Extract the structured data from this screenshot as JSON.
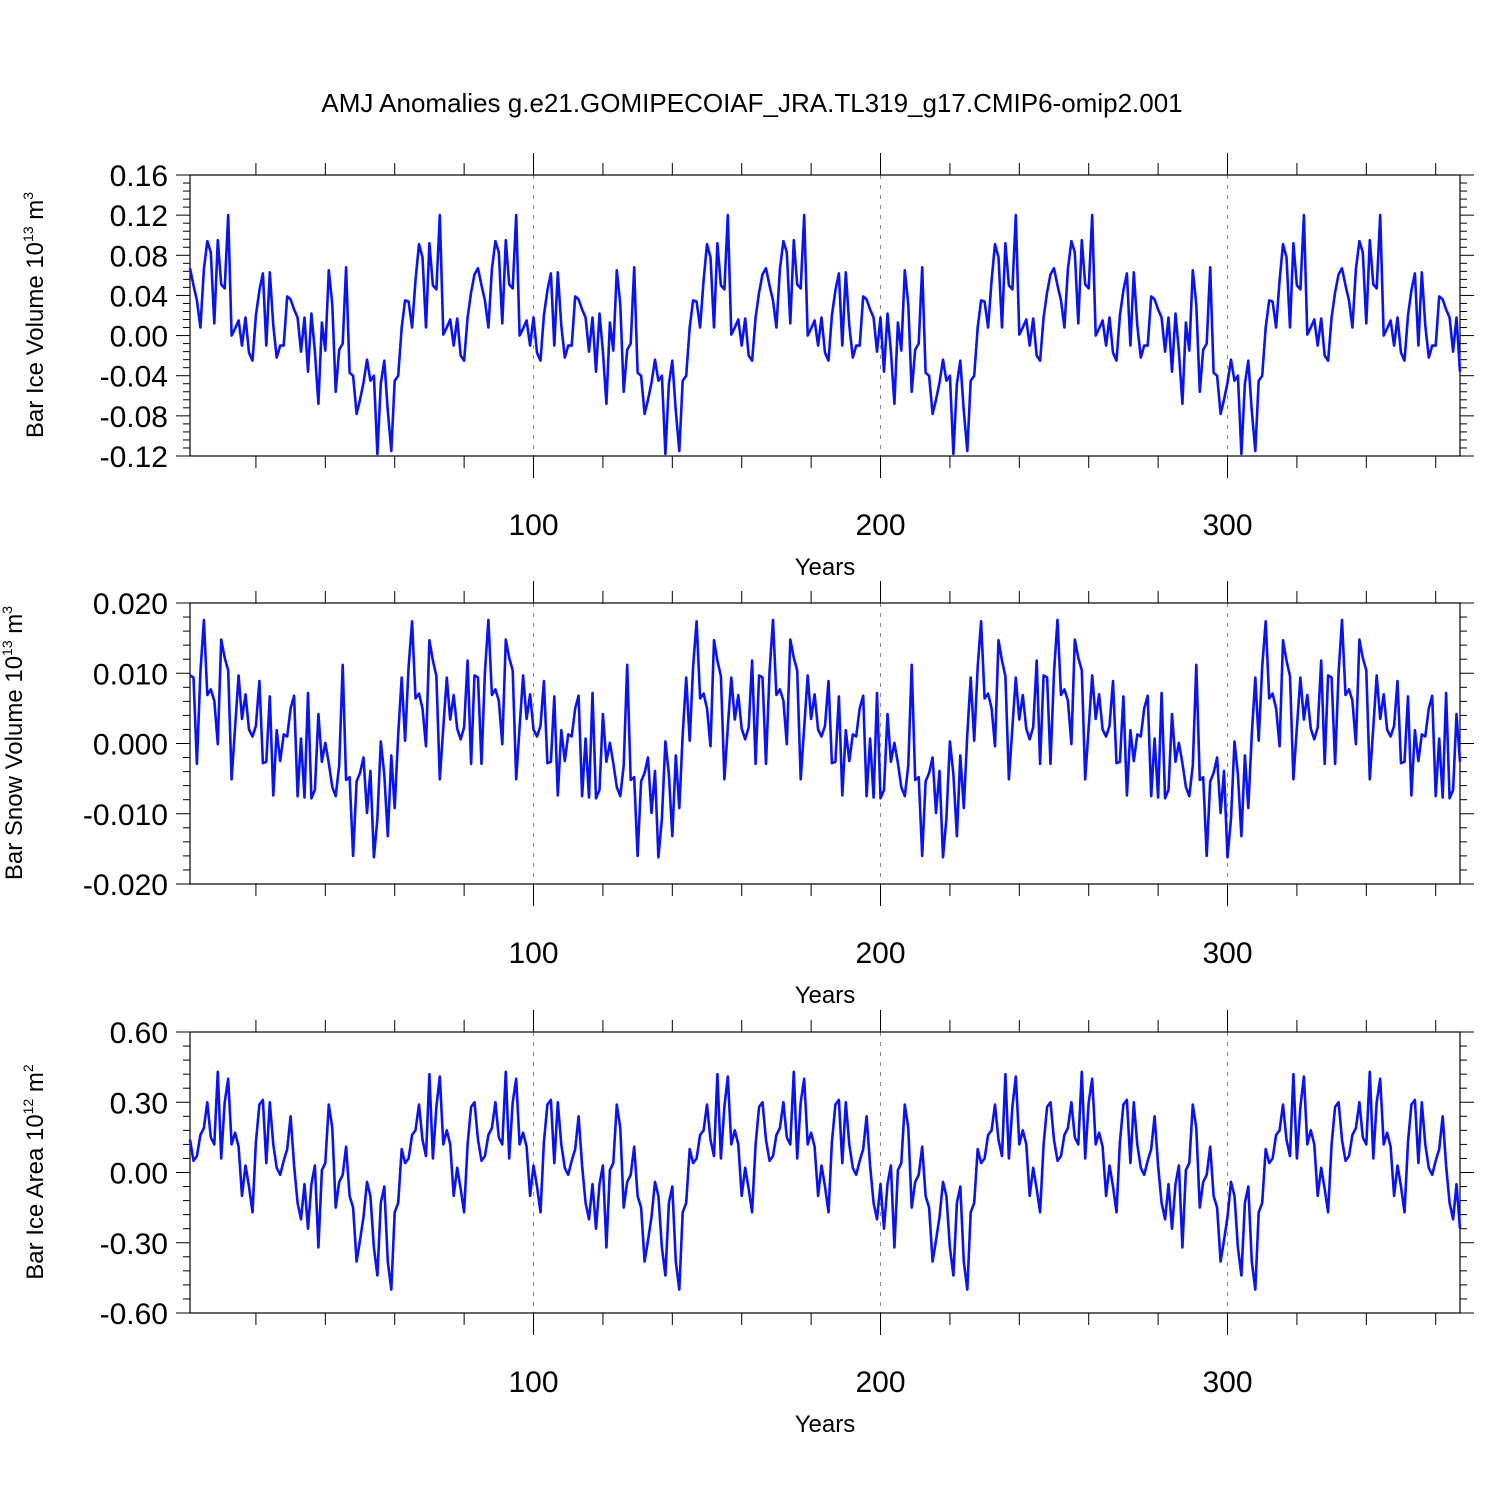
{
  "title": "AMJ Anomalies g.e21.GOMIPECOIAF_JRA.TL319_g17.CMIP6-omip2.001",
  "chart_data": [
    {
      "type": "line",
      "ylabel": {
        "prefix": "Bar Ice Volume 10",
        "exponent": "13",
        "unit": " m",
        "unit_exp": "3"
      },
      "xlabel": "Years",
      "xlim": [
        1,
        367
      ],
      "ylim": [
        -0.12,
        0.16
      ],
      "yticks": [
        -0.12,
        -0.08,
        -0.04,
        0.0,
        0.04,
        0.08,
        0.12,
        0.16
      ],
      "ytick_labels": [
        "-0.12",
        "-0.08",
        "-0.04",
        "0.00",
        "0.04",
        "0.08",
        "0.12",
        "0.16"
      ],
      "xticks": [
        100,
        200,
        300
      ],
      "xtick_labels": [
        "100",
        "200",
        "300"
      ],
      "line_color": "#0a14f0",
      "cycle": [
        0.067,
        0.05,
        0.035,
        0.008,
        0.066,
        0.094,
        0.083,
        0.012,
        0.095,
        0.051,
        0.047,
        0.12,
        0.0,
        0.007,
        0.015,
        -0.01,
        0.018,
        -0.017,
        -0.025,
        0.02,
        0.045,
        0.062,
        -0.01,
        0.063,
        0.01,
        -0.022,
        -0.01,
        -0.01,
        0.039,
        0.036,
        0.026,
        0.018,
        -0.016,
        0.018,
        -0.036,
        0.022,
        -0.016,
        -0.068,
        0.013,
        -0.015,
        0.065,
        0.031,
        -0.056,
        -0.014,
        -0.008,
        0.068,
        -0.037,
        -0.04,
        -0.078,
        -0.064,
        -0.047,
        -0.024,
        -0.045,
        -0.04,
        -0.118,
        -0.048,
        -0.025,
        -0.075,
        -0.115,
        -0.045,
        -0.04,
        0.008,
        0.035,
        0.034,
        0.008,
        0.055,
        0.091,
        0.078,
        0.008,
        0.092,
        0.05,
        0.046,
        0.12,
        0.001,
        0.008,
        0.016,
        -0.01,
        0.017,
        -0.02,
        -0.025,
        0.018,
        0.043,
        0.061
      ],
      "values": []
    },
    {
      "type": "line",
      "ylabel": {
        "prefix": "Bar Snow Volume 10",
        "exponent": "13",
        "unit": " m",
        "unit_exp": "3"
      },
      "xlabel": "Years",
      "xlim": [
        1,
        367
      ],
      "ylim": [
        -0.02,
        0.02
      ],
      "yticks": [
        -0.02,
        -0.01,
        0.0,
        0.01,
        0.02
      ],
      "ytick_labels": [
        "-0.020",
        "-0.010",
        "0.000",
        "0.010",
        "0.020"
      ],
      "xticks": [
        100,
        200,
        300
      ],
      "xtick_labels": [
        "100",
        "200",
        "300"
      ],
      "line_color": "#0a14f0",
      "cycle": [
        0.0097,
        0.0094,
        -0.0029,
        0.0101,
        0.0176,
        0.0069,
        0.0077,
        0.0061,
        -0.0001,
        0.0148,
        0.0122,
        0.0104,
        -0.0051,
        0.0023,
        0.0097,
        0.0035,
        0.007,
        0.002,
        0.001,
        0.0025,
        0.0089,
        -0.0028,
        -0.0026,
        0.0067,
        -0.0074,
        0.0019,
        -0.0025,
        0.0013,
        0.001,
        0.005,
        0.0068,
        -0.0075,
        0.0007,
        -0.0077,
        0.0072,
        -0.0078,
        -0.0066,
        0.0042,
        -0.0026,
        0.0001,
        -0.0028,
        -0.0062,
        -0.0075,
        -0.0031,
        0.0112,
        -0.0052,
        -0.0048,
        -0.016,
        -0.0054,
        -0.0042,
        -0.002,
        -0.0099,
        -0.0039,
        -0.0162,
        -0.0107,
        0.0003,
        -0.0044,
        -0.0132,
        -0.0017,
        -0.0092,
        0.0013,
        0.0094,
        0.0004,
        0.0109,
        0.0174,
        0.0064,
        0.0071,
        0.005,
        -0.0004,
        0.0147,
        0.0118,
        0.0096,
        -0.0051,
        0.0023,
        0.0094,
        0.0034,
        0.0069,
        0.0021,
        0.0006,
        0.0023,
        0.0118,
        -0.0029
      ],
      "values": []
    },
    {
      "type": "line",
      "ylabel": {
        "prefix": "Bar Ice Area 10",
        "exponent": "12",
        "unit": " m",
        "unit_exp": "2"
      },
      "xlabel": "Years",
      "xlim": [
        1,
        367
      ],
      "ylim": [
        -0.6,
        0.6
      ],
      "yticks": [
        -0.6,
        -0.3,
        0.0,
        0.3,
        0.6
      ],
      "ytick_labels": [
        "-0.60",
        "-0.30",
        "0.00",
        "0.30",
        "0.60"
      ],
      "xticks": [
        100,
        200,
        300
      ],
      "xtick_labels": [
        "100",
        "200",
        "300"
      ],
      "line_color": "#0a14f0",
      "cycle": [
        0.14,
        0.05,
        0.07,
        0.16,
        0.19,
        0.3,
        0.15,
        0.12,
        0.43,
        0.06,
        0.3,
        0.4,
        0.12,
        0.17,
        0.11,
        -0.1,
        0.03,
        -0.06,
        -0.17,
        0.13,
        0.29,
        0.31,
        0.04,
        0.3,
        0.12,
        0.02,
        -0.01,
        0.05,
        0.1,
        0.24,
        0.03,
        -0.13,
        -0.2,
        -0.05,
        -0.24,
        -0.05,
        0.03,
        -0.32,
        0.01,
        0.04,
        0.29,
        0.19,
        -0.15,
        -0.04,
        -0.01,
        0.11,
        -0.1,
        -0.15,
        -0.38,
        -0.29,
        -0.19,
        -0.04,
        -0.1,
        -0.32,
        -0.44,
        -0.13,
        -0.06,
        -0.38,
        -0.5,
        -0.17,
        -0.13,
        0.1,
        0.04,
        0.06,
        0.16,
        0.18,
        0.29,
        0.14,
        0.07,
        0.42,
        0.06,
        0.28,
        0.41,
        0.12,
        0.18,
        0.12,
        -0.1,
        0.02,
        -0.07,
        -0.17,
        0.12,
        0.28,
        0.3
      ],
      "values": []
    }
  ]
}
